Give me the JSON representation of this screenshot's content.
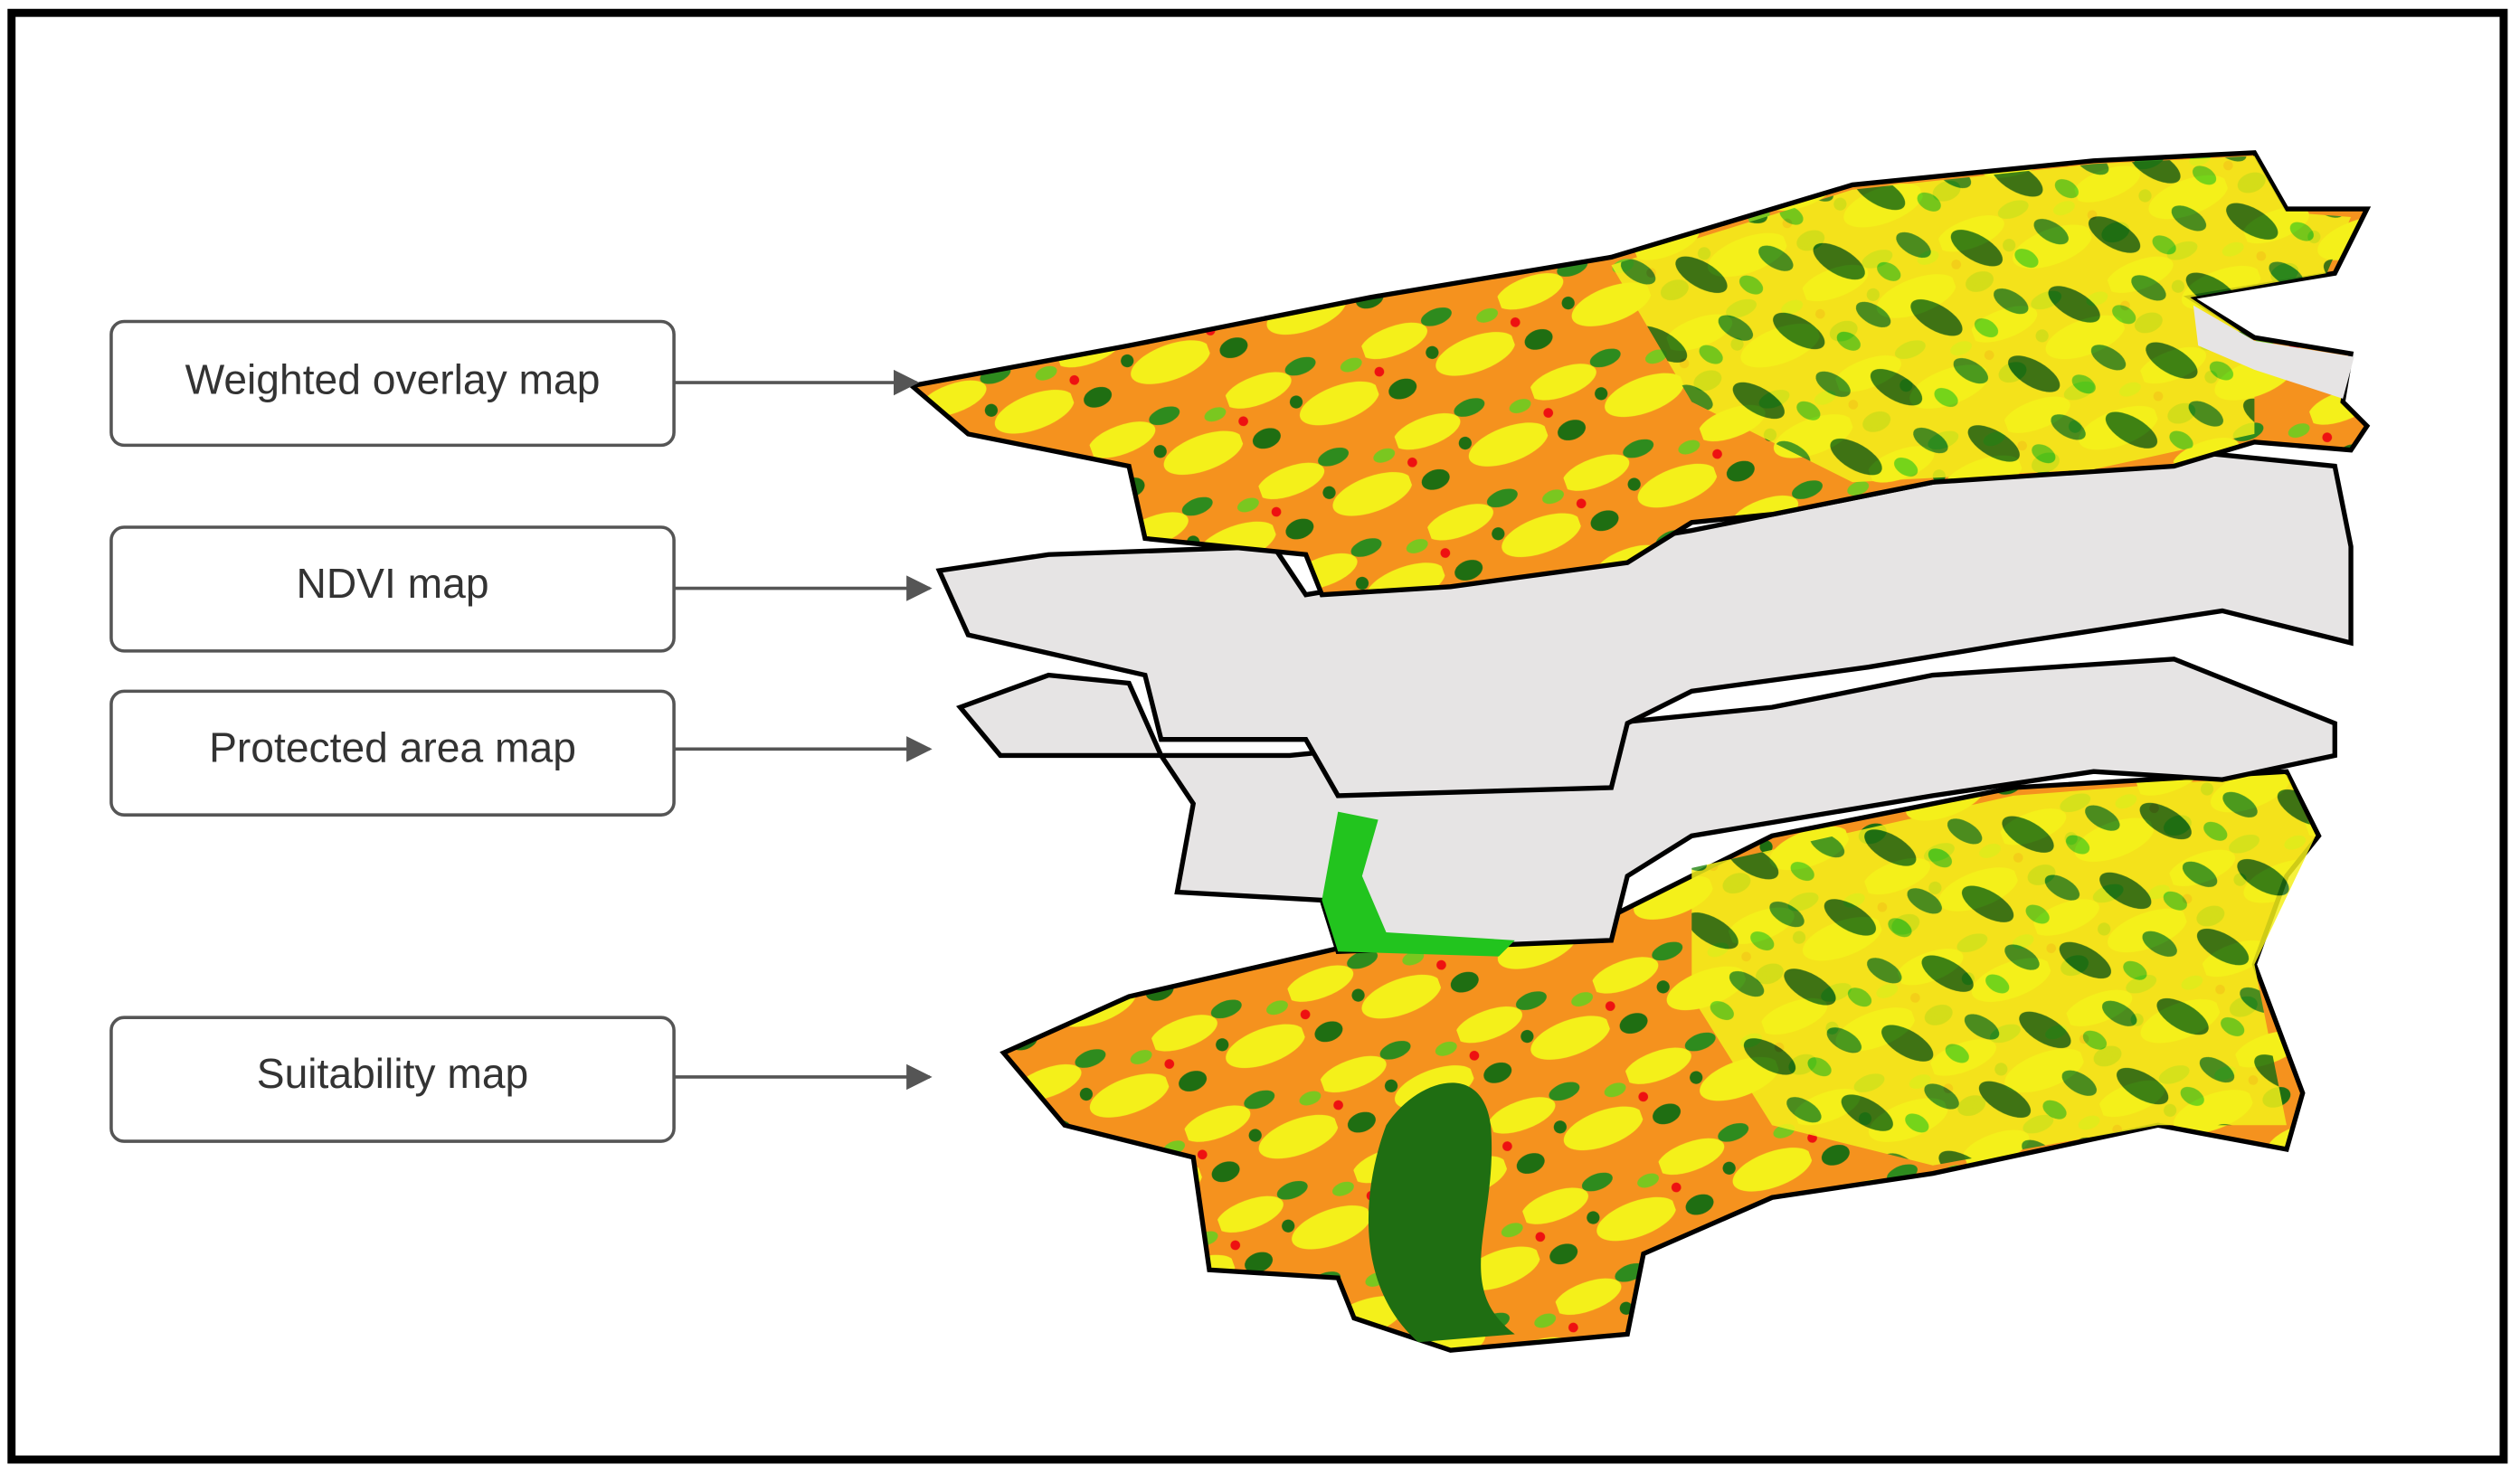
{
  "boxes": [
    {
      "label": "Weighted overlay map"
    },
    {
      "label": "NDVI map"
    },
    {
      "label": "Protected area map"
    },
    {
      "label": "Suitability map"
    }
  ]
}
